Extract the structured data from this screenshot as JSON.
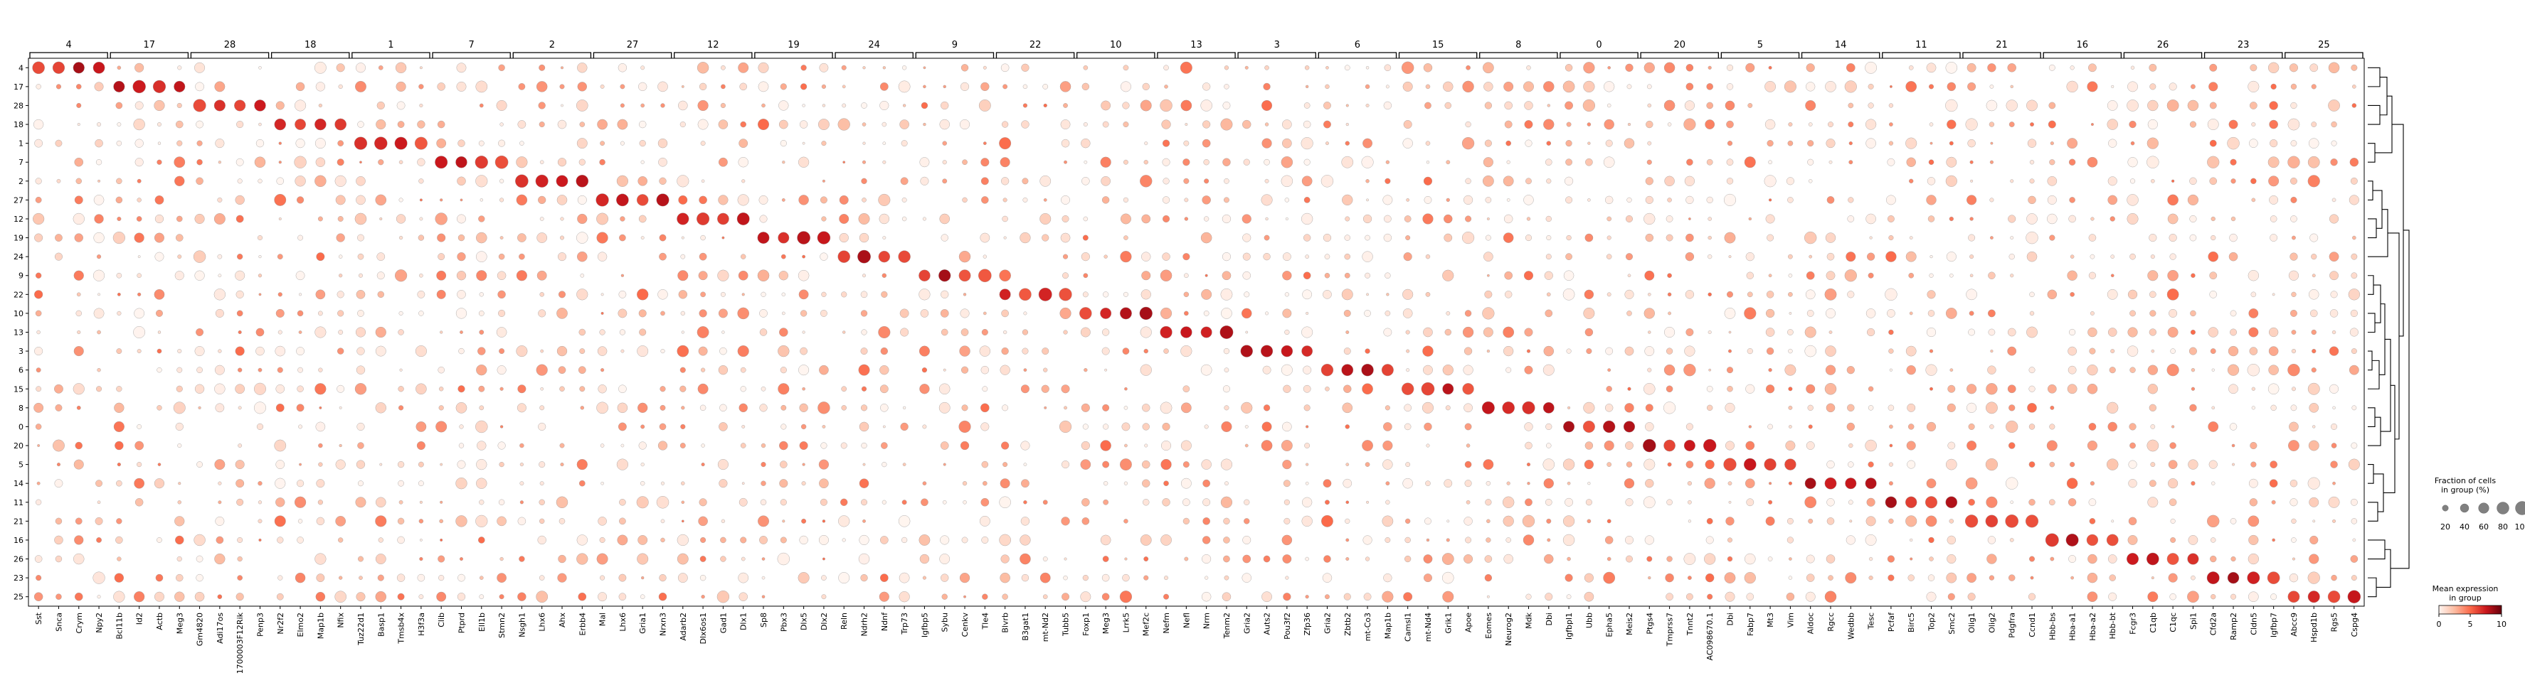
{
  "chart_data": {
    "type": "dotplot",
    "cluster_order": [
      "4",
      "17",
      "28",
      "18",
      "1",
      "7",
      "2",
      "27",
      "12",
      "19",
      "24",
      "9",
      "22",
      "10",
      "13",
      "3",
      "6",
      "15",
      "8",
      "0",
      "20",
      "5",
      "14",
      "11",
      "21",
      "16",
      "26",
      "23",
      "25"
    ],
    "gene_groups": [
      {
        "label": "4",
        "genes": [
          "Sst",
          "Snca",
          "Crym",
          "Npy2"
        ]
      },
      {
        "label": "17",
        "genes": [
          "Bcl11b",
          "Id2",
          "Actb",
          "Meg3"
        ]
      },
      {
        "label": "28",
        "genes": [
          "Gm4820",
          "Adi17os",
          "1700003F12Rik",
          "Penp3"
        ]
      },
      {
        "label": "18",
        "genes": [
          "Nr2f2",
          "Elmo2",
          "Map1b",
          "Nfix"
        ]
      },
      {
        "label": "1",
        "genes": [
          "Tuz22d1",
          "Basp1",
          "Tmsb4x",
          "H3f3a"
        ]
      },
      {
        "label": "7",
        "genes": [
          "Clib",
          "Ptprd",
          "Ell1b",
          "Stmn2"
        ]
      },
      {
        "label": "2",
        "genes": [
          "Nsgh1",
          "Lhx6",
          "Ahx",
          "Erbb4"
        ]
      },
      {
        "label": "27",
        "genes": [
          "Mal",
          "Lhx6",
          "Gria1",
          "Nrxn3"
        ]
      },
      {
        "label": "12",
        "genes": [
          "Adarb2",
          "Dlx6os1",
          "Gad1",
          "Dlx1"
        ]
      },
      {
        "label": "19",
        "genes": [
          "Sp8",
          "Pbx3",
          "Dlx5",
          "Dlx2"
        ]
      },
      {
        "label": "24",
        "genes": [
          "Reln",
          "Ndrh2",
          "Ndnf",
          "Trp73"
        ]
      },
      {
        "label": "9",
        "genes": [
          "Igfbp5",
          "Sybu",
          "Cenkv",
          "Tle4"
        ]
      },
      {
        "label": "22",
        "genes": [
          "Blvrb",
          "B3gat1",
          "mt-Nd2",
          "Tubb5"
        ]
      },
      {
        "label": "10",
        "genes": [
          "Foxp1",
          "Meg3",
          "Lrrk5",
          "Mef2c"
        ]
      },
      {
        "label": "13",
        "genes": [
          "Nefm",
          "Nefl",
          "Nrm",
          "Tenm2"
        ]
      },
      {
        "label": "3",
        "genes": [
          "Gria2",
          "Auts2",
          "Pou3f2",
          "Zfp36"
        ]
      },
      {
        "label": "6",
        "genes": [
          "Gria2",
          "Zbtb2",
          "mt-Co3",
          "Map1b"
        ]
      },
      {
        "label": "15",
        "genes": [
          "Camsl1",
          "mt-Nd4",
          "Grik1",
          "Apoe"
        ]
      },
      {
        "label": "8",
        "genes": [
          "Eomes",
          "Neurog2",
          "Mdk",
          "Dbi"
        ]
      },
      {
        "label": "0",
        "genes": [
          "Igfbpl1",
          "Ubb",
          "Epha5",
          "Meis2"
        ]
      },
      {
        "label": "20",
        "genes": [
          "Ptgs4",
          "Tmprss7",
          "Tnnt2",
          "AC098670.1"
        ]
      },
      {
        "label": "5",
        "genes": [
          "Dbi",
          "Fabp7",
          "Mt3",
          "Vim"
        ]
      },
      {
        "label": "14",
        "genes": [
          "Aldoc",
          "Rgcc",
          "Wedbb",
          "Tesc"
        ]
      },
      {
        "label": "11",
        "genes": [
          "Pcfaf",
          "Birc5",
          "Top2",
          "Smc2"
        ]
      },
      {
        "label": "21",
        "genes": [
          "Olig1",
          "Olig2",
          "Pdgfra",
          "Ccnd1"
        ]
      },
      {
        "label": "16",
        "genes": [
          "Hbb-bs",
          "Hba-a1",
          "Hba-a2",
          "Hbb-bt"
        ]
      },
      {
        "label": "26",
        "genes": [
          "Fcgr3",
          "C1qb",
          "C1qc",
          "Spi1"
        ]
      },
      {
        "label": "23",
        "genes": [
          "Cfd2a",
          "Ramp2",
          "Cldn5",
          "Igfbp7"
        ]
      },
      {
        "label": "25",
        "genes": [
          "Abcc9",
          "Hspd1b",
          "Rgs5",
          "Cspg4"
        ]
      }
    ],
    "marker_expression": 8.5,
    "marker_fraction": 95,
    "background_pattern_note_free": true,
    "size_legend": {
      "title": "Fraction of cells\nin group (%)",
      "ticks": [
        20,
        40,
        60,
        80,
        100
      ]
    },
    "color_legend": {
      "title": "Mean expression\nin group",
      "ticks": [
        0,
        5,
        10
      ],
      "vmin": 0,
      "vmax": 10,
      "cmap": [
        "#fff5f0",
        "#fcbba1",
        "#fb6a4a",
        "#cb181d",
        "#67000d"
      ]
    },
    "dendrogram": "right"
  }
}
